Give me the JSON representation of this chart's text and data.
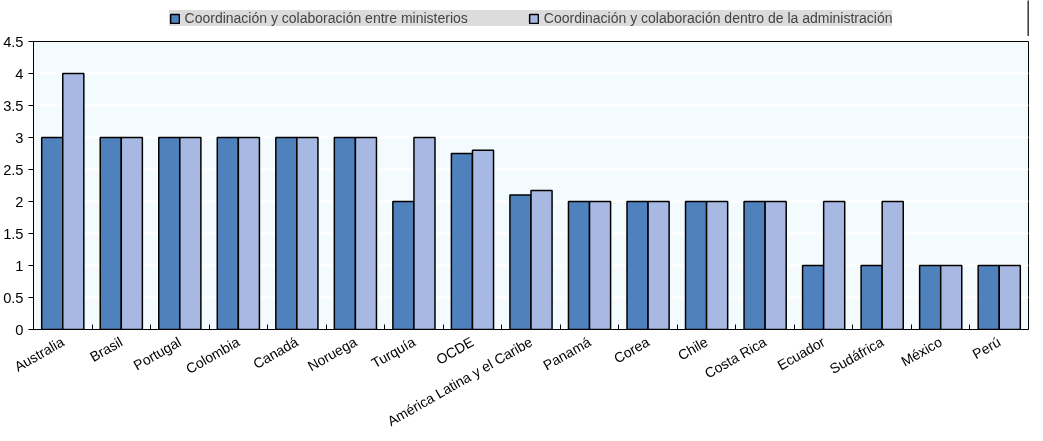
{
  "chart_data": {
    "type": "bar",
    "categories": [
      "Australia",
      "Brasil",
      "Portugal",
      "Colombia",
      "Canadá",
      "Noruega",
      "Turquía",
      "OCDE",
      "América Latina y el Caribe",
      "Panamá",
      "Corea",
      "Chile",
      "Costa Rica",
      "Ecuador",
      "Sudáfrica",
      "México",
      "Perú"
    ],
    "series": [
      {
        "name": "Coordinación y colaboración entre ministerios",
        "color": "#4f81bd",
        "values": [
          3,
          3,
          3,
          3,
          3,
          3,
          2,
          2.75,
          2.1,
          2,
          2,
          2,
          2,
          1,
          1,
          1,
          1
        ]
      },
      {
        "name": "Coordinación y colaboración dentro de la administración",
        "color": "#a7b9e3",
        "values": [
          4,
          3,
          3,
          3,
          3,
          3,
          3,
          2.8,
          2.17,
          2,
          2,
          2,
          2,
          2,
          2,
          1,
          1
        ]
      }
    ],
    "ylim": [
      0,
      4.5
    ],
    "yticks": [
      0,
      0.5,
      1,
      1.5,
      2,
      2.5,
      3,
      3.5,
      4,
      4.5
    ],
    "grid": "y",
    "legend": "top"
  }
}
